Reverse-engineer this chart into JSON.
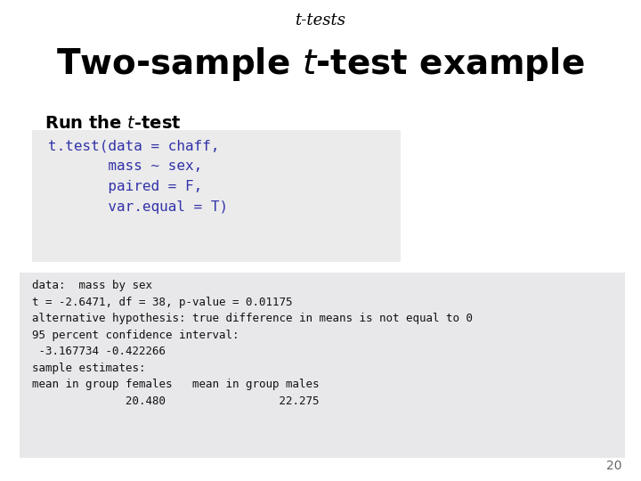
{
  "title_small": "t-tests",
  "code_box_text": "t.test(data = chaff,\n       mass ~ sex,\n       paired = F,\n       var.equal = T)",
  "output_text": "data:  mass by sex\nt = -2.6471, df = 38, p-value = 0.01175\nalternative hypothesis: true difference in means is not equal to 0\n95 percent confidence interval:\n -3.167734 -0.422266\nsample estimates:\nmean in group females   mean in group males\n              20.480                 22.275",
  "page_number": "20",
  "bg_color": "#ffffff",
  "code_box_bg": "#ebebeb",
  "output_box_bg": "#e8e8ea",
  "code_text_color": "#3333aa",
  "output_text_color": "#111111",
  "title_small_color": "#000000",
  "title_large_color": "#000000",
  "subtitle_color": "#000000",
  "page_num_color": "#666666"
}
